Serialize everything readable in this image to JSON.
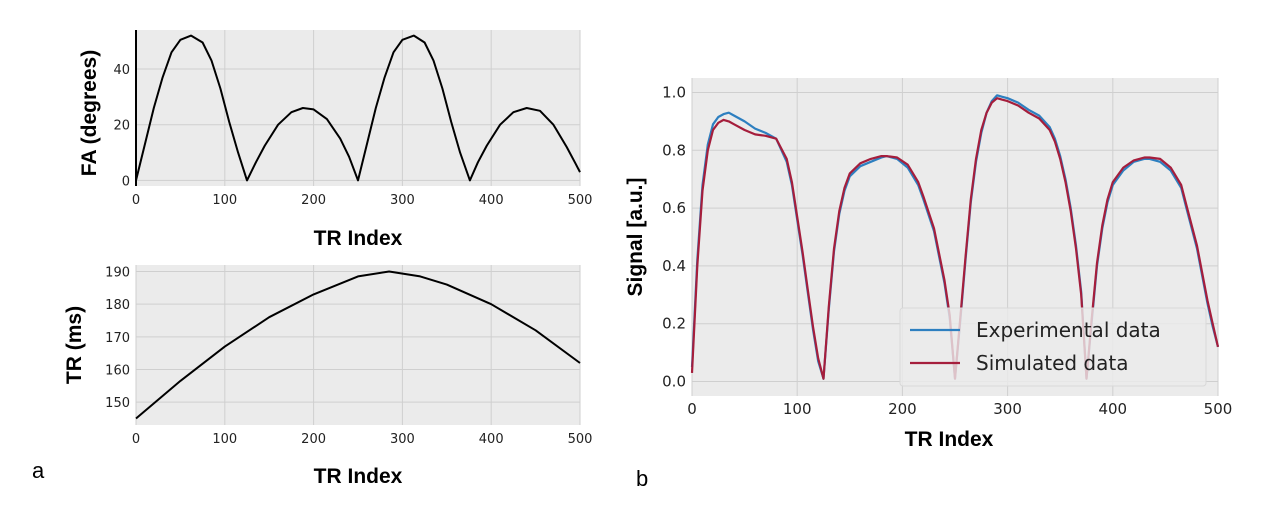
{
  "panel_labels": {
    "a": "a",
    "b": "b"
  },
  "chart_data": [
    {
      "id": "fa",
      "type": "line",
      "xlabel": "TR Index",
      "ylabel": "FA (degrees)",
      "xlim": [
        0,
        500
      ],
      "ylim": [
        -2,
        54
      ],
      "xticks": [
        0,
        100,
        200,
        300,
        400,
        500
      ],
      "yticks": [
        0,
        20,
        40
      ],
      "grid": true,
      "series": [
        {
          "name": "FA",
          "color": "#000000",
          "x": [
            0,
            10,
            20,
            30,
            40,
            50,
            62,
            75,
            85,
            95,
            105,
            115,
            125,
            135,
            145,
            160,
            175,
            188,
            200,
            215,
            230,
            240,
            250,
            260,
            270,
            280,
            290,
            300,
            313,
            325,
            335,
            345,
            355,
            365,
            376,
            385,
            395,
            410,
            425,
            440,
            455,
            470,
            485,
            495,
            500
          ],
          "y": [
            0,
            13,
            26,
            37,
            46,
            50.5,
            52,
            49.5,
            43,
            33,
            21,
            10,
            0,
            6.5,
            12.5,
            20,
            24.5,
            26,
            25.5,
            22,
            15,
            8.5,
            0,
            13,
            26,
            37,
            46,
            50.5,
            52,
            49.5,
            43,
            33,
            21,
            10,
            0,
            6.5,
            12.5,
            20,
            24.5,
            26,
            25,
            20,
            12,
            6,
            3
          ]
        }
      ]
    },
    {
      "id": "tr",
      "type": "line",
      "xlabel": "TR Index",
      "ylabel": "TR (ms)",
      "xlim": [
        0,
        500
      ],
      "ylim": [
        143,
        192
      ],
      "xticks": [
        0,
        100,
        200,
        300,
        400,
        500
      ],
      "yticks": [
        150,
        160,
        170,
        180,
        190
      ],
      "grid": true,
      "series": [
        {
          "name": "TR",
          "color": "#000000",
          "x": [
            0,
            50,
            100,
            150,
            200,
            250,
            285,
            320,
            350,
            400,
            450,
            500
          ],
          "y": [
            145,
            156.5,
            167,
            176,
            183,
            188.5,
            190,
            188.5,
            186,
            180,
            172,
            162
          ]
        }
      ]
    },
    {
      "id": "signal",
      "type": "line",
      "xlabel": "TR Index",
      "ylabel": "Signal [a.u.]",
      "xlim": [
        0,
        500
      ],
      "ylim": [
        -0.05,
        1.05
      ],
      "xticks": [
        0,
        100,
        200,
        300,
        400,
        500
      ],
      "yticks": [
        0.0,
        0.2,
        0.4,
        0.6,
        0.8,
        1.0
      ],
      "grid": true,
      "legend": "lower-right",
      "series": [
        {
          "name": "Experimental data",
          "color": "#2d7fc0",
          "x": [
            0,
            5,
            10,
            15,
            20,
            25,
            30,
            35,
            40,
            50,
            60,
            70,
            80,
            90,
            95,
            100,
            105,
            110,
            115,
            120,
            125,
            130,
            135,
            140,
            145,
            150,
            160,
            170,
            180,
            185,
            195,
            205,
            215,
            220,
            230,
            240,
            245,
            250,
            255,
            260,
            265,
            270,
            275,
            280,
            285,
            290,
            295,
            300,
            310,
            320,
            330,
            340,
            345,
            350,
            355,
            360,
            365,
            370,
            375,
            380,
            385,
            390,
            395,
            400,
            410,
            420,
            430,
            435,
            445,
            455,
            465,
            470,
            480,
            490,
            495,
            500
          ],
          "y": [
            0.05,
            0.42,
            0.68,
            0.82,
            0.89,
            0.915,
            0.925,
            0.93,
            0.92,
            0.9,
            0.875,
            0.86,
            0.84,
            0.76,
            0.68,
            0.56,
            0.44,
            0.31,
            0.18,
            0.07,
            0.01,
            0.25,
            0.45,
            0.58,
            0.66,
            0.71,
            0.745,
            0.76,
            0.775,
            0.78,
            0.77,
            0.74,
            0.68,
            0.63,
            0.52,
            0.34,
            0.22,
            0.01,
            0.21,
            0.42,
            0.62,
            0.76,
            0.86,
            0.93,
            0.97,
            0.99,
            0.985,
            0.98,
            0.965,
            0.94,
            0.92,
            0.88,
            0.84,
            0.78,
            0.7,
            0.6,
            0.47,
            0.31,
            0.01,
            0.21,
            0.4,
            0.53,
            0.62,
            0.68,
            0.73,
            0.76,
            0.77,
            0.77,
            0.76,
            0.73,
            0.67,
            0.6,
            0.46,
            0.27,
            0.19,
            0.12
          ]
        },
        {
          "name": "Simulated data",
          "color": "#a51e3c",
          "x": [
            0,
            5,
            10,
            15,
            20,
            25,
            30,
            35,
            40,
            50,
            60,
            70,
            80,
            90,
            95,
            100,
            105,
            110,
            115,
            120,
            125,
            130,
            135,
            140,
            145,
            150,
            160,
            170,
            180,
            185,
            195,
            205,
            215,
            220,
            230,
            240,
            245,
            250,
            255,
            260,
            265,
            270,
            275,
            280,
            285,
            290,
            295,
            300,
            310,
            320,
            330,
            340,
            345,
            350,
            355,
            360,
            365,
            370,
            375,
            380,
            385,
            390,
            395,
            400,
            410,
            420,
            430,
            435,
            445,
            455,
            465,
            470,
            480,
            490,
            495,
            500
          ],
          "y": [
            0.03,
            0.4,
            0.66,
            0.8,
            0.87,
            0.895,
            0.905,
            0.9,
            0.89,
            0.87,
            0.855,
            0.85,
            0.84,
            0.77,
            0.69,
            0.57,
            0.45,
            0.32,
            0.19,
            0.08,
            0.01,
            0.26,
            0.46,
            0.59,
            0.67,
            0.72,
            0.755,
            0.77,
            0.78,
            0.78,
            0.775,
            0.75,
            0.69,
            0.64,
            0.53,
            0.35,
            0.23,
            0.01,
            0.22,
            0.43,
            0.63,
            0.77,
            0.87,
            0.93,
            0.965,
            0.98,
            0.975,
            0.97,
            0.955,
            0.93,
            0.91,
            0.87,
            0.83,
            0.77,
            0.69,
            0.59,
            0.46,
            0.3,
            0.01,
            0.22,
            0.41,
            0.54,
            0.63,
            0.69,
            0.74,
            0.765,
            0.775,
            0.775,
            0.77,
            0.74,
            0.68,
            0.61,
            0.47,
            0.28,
            0.2,
            0.12
          ]
        }
      ]
    }
  ]
}
